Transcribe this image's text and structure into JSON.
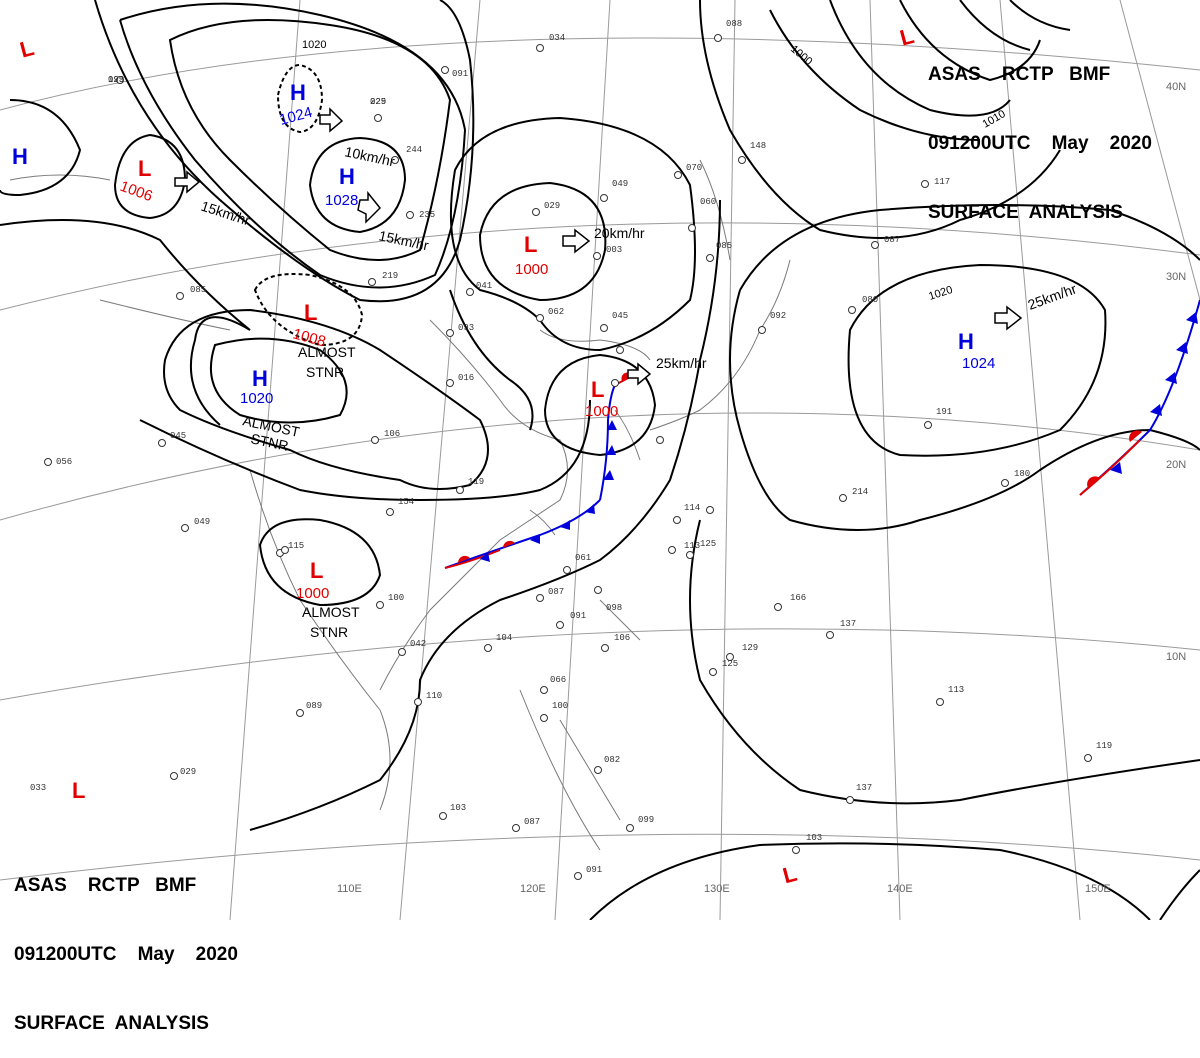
{
  "header": {
    "line1": "ASAS    RCTP   BMF",
    "line2": "091200UTC    May    2020",
    "line3": "SURFACE  ANALYSIS"
  },
  "footer": {
    "line1": "ASAS    RCTP   BMF",
    "line2": "091200UTC    May    2020",
    "line3": "SURFACE  ANALYSIS"
  },
  "lon_labels": [
    "110E",
    "120E",
    "130E",
    "140E",
    "150E"
  ],
  "lat_labels": [
    "40N",
    "30N",
    "20N",
    "10N"
  ],
  "isobar_labels": [
    "1020",
    "1000",
    "1010",
    "1020"
  ],
  "pressure_systems": [
    {
      "id": "h-w-edge",
      "type": "H",
      "value": ""
    },
    {
      "id": "h-north",
      "type": "H",
      "value": "1024"
    },
    {
      "id": "h-center",
      "type": "H",
      "value": "1028"
    },
    {
      "id": "h-west",
      "type": "H",
      "value": "1020"
    },
    {
      "id": "h-pacific",
      "type": "H",
      "value": "1024"
    },
    {
      "id": "l-far-nw",
      "type": "L",
      "value": ""
    },
    {
      "id": "l-west",
      "type": "L",
      "value": "1006"
    },
    {
      "id": "l-mid",
      "type": "L",
      "value": "1008"
    },
    {
      "id": "l-north",
      "type": "L",
      "value": "1000"
    },
    {
      "id": "l-sw",
      "type": "L",
      "value": "1000"
    },
    {
      "id": "l-korea",
      "type": "L",
      "value": "1000"
    },
    {
      "id": "l-ne",
      "type": "L",
      "value": ""
    },
    {
      "id": "l-bottom-left",
      "type": "L",
      "value": ""
    },
    {
      "id": "l-bottom",
      "type": "L",
      "value": ""
    }
  ],
  "motion_labels": [
    "15km/hr",
    "10km/hr",
    "15km/hr",
    "20km/hr",
    "25km/hr",
    "25km/hr"
  ],
  "remarks": [
    "ALMOST",
    "STNR",
    "ALMOST",
    "STNR",
    "ALMOST",
    "STNR"
  ],
  "station_values": [
    "099",
    "225",
    "244",
    "235",
    "219",
    "085",
    "093",
    "062",
    "045",
    "049",
    "029",
    "003",
    "041",
    "016",
    "106",
    "119",
    "154",
    "115",
    "100",
    "042",
    "061",
    "087",
    "091",
    "098",
    "104",
    "106",
    "110",
    "089",
    "045",
    "056",
    "049",
    "033",
    "029",
    "066",
    "100",
    "082",
    "103",
    "087",
    "099",
    "091",
    "125",
    "113",
    "114",
    "070",
    "060",
    "085",
    "092",
    "148",
    "117",
    "087",
    "080",
    "191",
    "214",
    "180",
    "166",
    "137",
    "129",
    "125",
    "119",
    "113",
    "137",
    "103",
    "088",
    "034",
    "091",
    "123",
    "029"
  ],
  "colors": {
    "low": "#e00000",
    "high": "#0000dd",
    "line": "#000000",
    "grid": "#999999",
    "coast": "#777777",
    "warm_front": "#e00000",
    "cold_front": "#0000dd"
  }
}
